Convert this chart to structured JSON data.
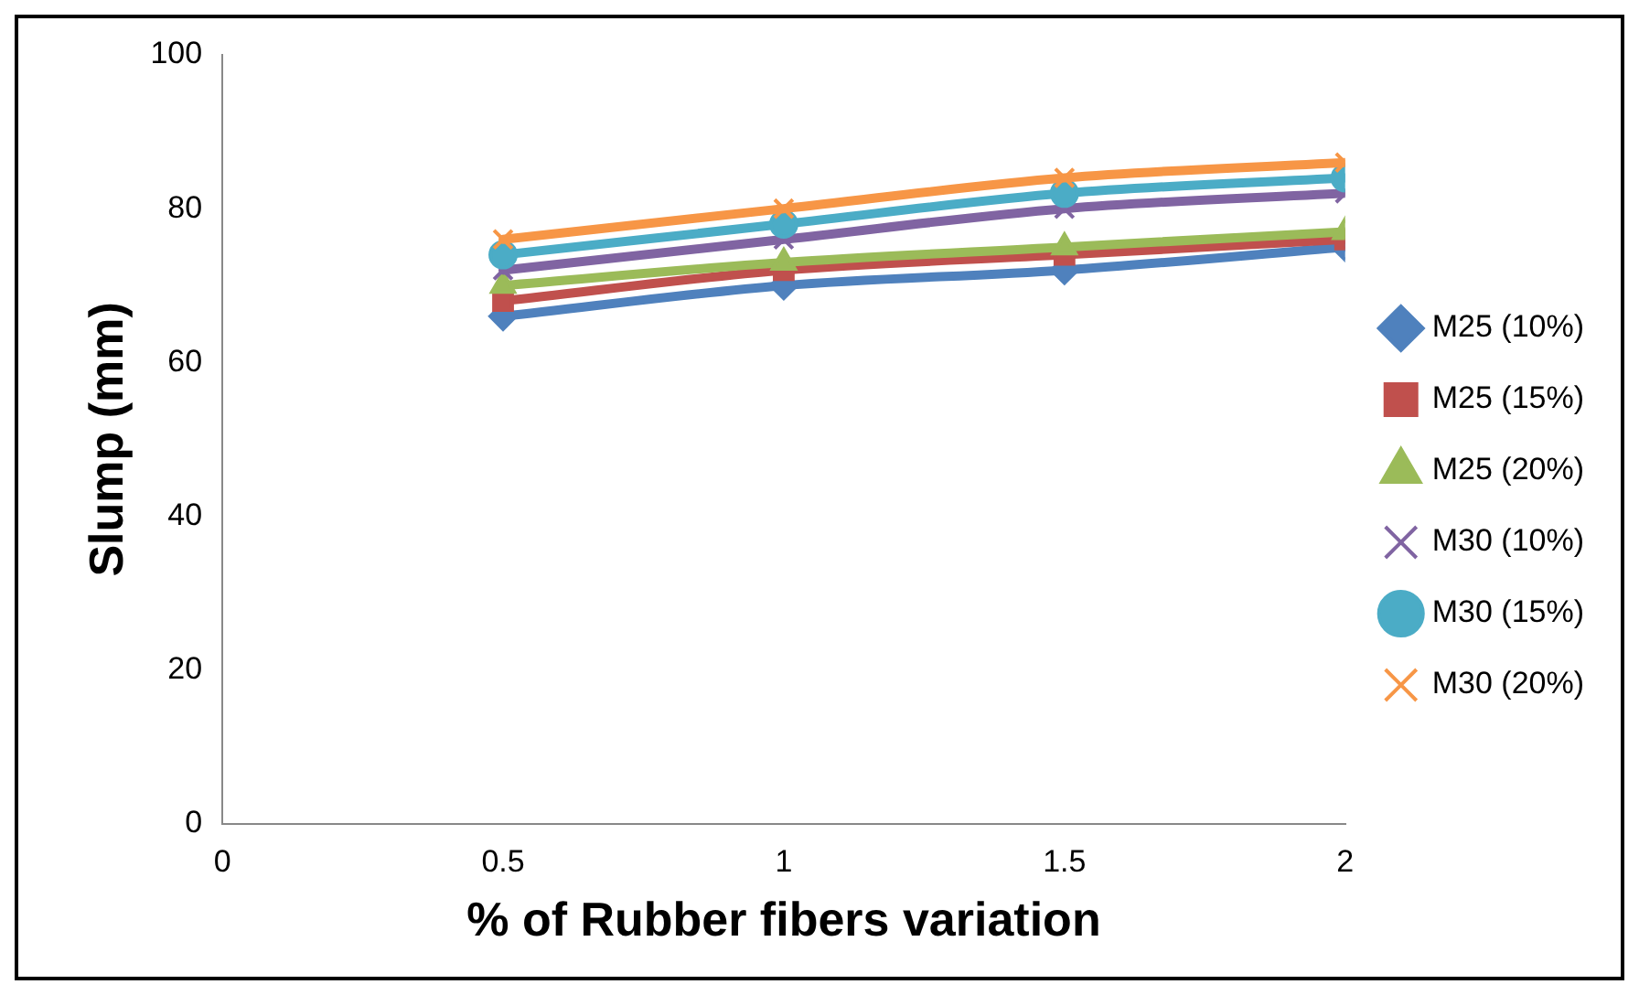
{
  "chart_data": {
    "type": "line",
    "xlabel": "% of Rubber fibers variation",
    "ylabel": "Slump (mm)",
    "x": [
      0.5,
      1,
      1.5,
      2
    ],
    "series": [
      {
        "name": "M25 (10%)",
        "color": "#4f81bd",
        "marker": "diamond",
        "values": [
          66,
          70,
          72,
          75
        ]
      },
      {
        "name": "M25 (15%)",
        "color": "#c0504d",
        "marker": "square",
        "values": [
          68,
          72,
          74,
          76
        ]
      },
      {
        "name": "M25 (20%)",
        "color": "#9bbb59",
        "marker": "triangle",
        "values": [
          70,
          73,
          75,
          77
        ]
      },
      {
        "name": "M30 (10%)",
        "color": "#8064a2",
        "marker": "cross",
        "values": [
          72,
          76,
          80,
          82
        ]
      },
      {
        "name": "M30 (15%)",
        "color": "#4bacc6",
        "marker": "circle",
        "values": [
          74,
          78,
          82,
          84
        ]
      },
      {
        "name": "M30 (20%)",
        "color": "#f79646",
        "marker": "cross",
        "values": [
          76,
          80,
          84,
          86
        ]
      }
    ],
    "xlim": [
      0,
      2
    ],
    "xticks": [
      0,
      0.5,
      1,
      1.5,
      2
    ],
    "ylim": [
      0,
      100
    ],
    "yticks": [
      0,
      20,
      40,
      60,
      80,
      100
    ],
    "grid": false,
    "legend": "right"
  }
}
